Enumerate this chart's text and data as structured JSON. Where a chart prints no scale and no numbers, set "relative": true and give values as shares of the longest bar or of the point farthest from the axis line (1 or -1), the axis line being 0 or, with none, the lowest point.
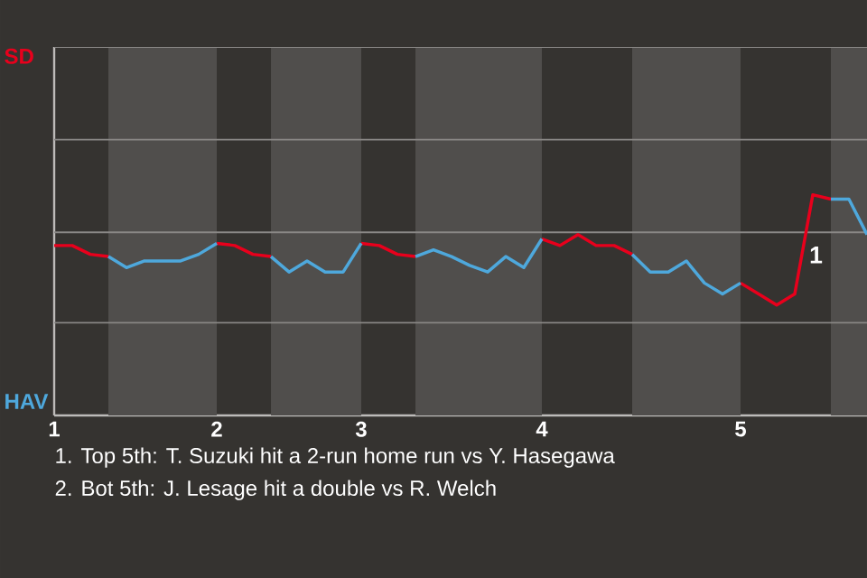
{
  "chart_data": {
    "type": "line",
    "relative": true,
    "categories": [
      "1",
      null,
      null,
      null,
      null,
      null,
      null,
      null,
      null,
      "2",
      null,
      null,
      null,
      null,
      null,
      null,
      null,
      "3",
      null,
      null,
      null,
      null,
      null,
      null,
      null,
      null,
      null,
      "4",
      null,
      null,
      null,
      null,
      null,
      null,
      null,
      null,
      null,
      null,
      "5",
      null,
      null,
      null,
      null,
      null,
      null,
      null
    ],
    "line_style": "solid",
    "ref_lines": [
      {
        "axis": "y",
        "value": 0.42,
        "color": "#8a8886"
      },
      {
        "axis": "y",
        "value": 0.83,
        "color": "#8a8886"
      },
      {
        "axis": "y",
        "value": 1.25,
        "color": "#8a8886"
      },
      {
        "axis": "y",
        "value": 1.67,
        "color": "#8a8886"
      }
    ],
    "series": [
      {
        "color": "#e8001c",
        "values": [
          0.77,
          0.77,
          0.73,
          0.72,
          null,
          null,
          null,
          null,
          null,
          0.78,
          0.77,
          0.73,
          0.72,
          null,
          null,
          null,
          null,
          0.78,
          0.77,
          0.73,
          0.72,
          null,
          null,
          null,
          null,
          null,
          null,
          0.8,
          0.77,
          0.82,
          0.77,
          0.77,
          0.73,
          null,
          null,
          null,
          null,
          null,
          0.6,
          0.55,
          0.5,
          0.55,
          1,
          0.98,
          null,
          null
        ]
      },
      {
        "color": "#4ea8dc",
        "values": [
          null,
          null,
          null,
          0.72,
          0.67,
          0.7,
          0.7,
          0.7,
          0.73,
          0.78,
          null,
          null,
          0.72,
          0.65,
          0.7,
          0.65,
          0.65,
          0.78,
          null,
          null,
          0.72,
          0.75,
          0.72,
          0.68,
          0.65,
          0.72,
          0.67,
          0.8,
          null,
          null,
          null,
          null,
          0.73,
          0.65,
          0.65,
          0.7,
          0.6,
          0.55,
          0.6,
          null,
          null,
          null,
          null,
          0.98,
          0.98,
          0.82
        ]
      }
    ],
    "annotations": [
      "SD",
      "HAV",
      "1",
      "1. Top 5th: T. Suzuki hit a 2-run home run vs Y. Hasegawa",
      "2. Bot 5th: J. Lesage hit a double vs R. Welch"
    ]
  }
}
